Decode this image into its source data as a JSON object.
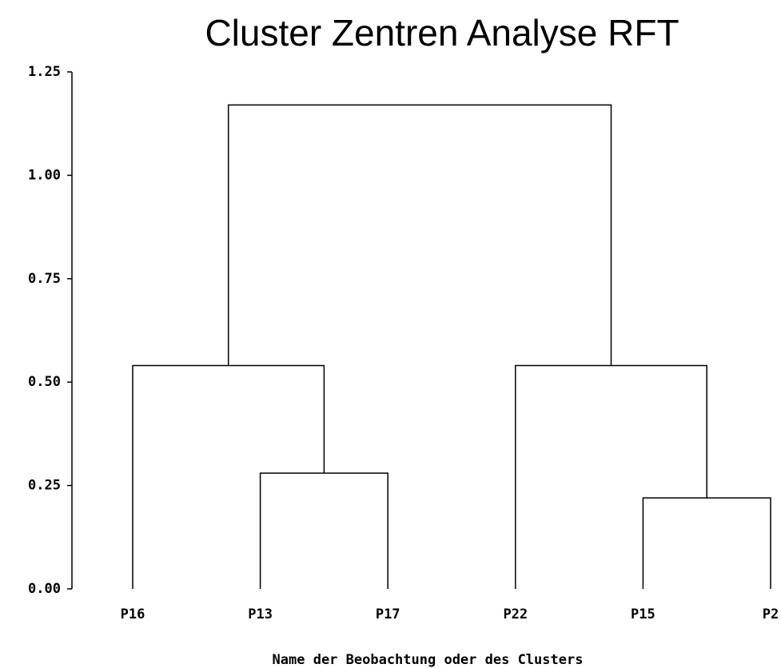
{
  "chart_data": {
    "type": "dendrogram",
    "title": "Cluster Zentren Analyse RFT",
    "x_label": "Name der Beobachtung oder des Clusters",
    "categories": [
      "P16",
      "P13",
      "P17",
      "P22",
      "P15",
      "P2"
    ],
    "merges": [
      {
        "children": [
          1,
          2
        ],
        "height": 0.28
      },
      {
        "children": [
          4,
          5
        ],
        "height": 0.22
      },
      {
        "children": [
          0,
          6
        ],
        "height": 0.54
      },
      {
        "children": [
          3,
          7
        ],
        "height": 0.54
      },
      {
        "children": [
          8,
          9
        ],
        "height": 1.17
      }
    ],
    "color": "#000000",
    "ylim": [
      0,
      1.25
    ],
    "yticks": [
      {
        "value": 0,
        "label": "0.00"
      },
      {
        "value": 0.25,
        "label": "0.25"
      },
      {
        "value": 0.5,
        "label": "0.50"
      },
      {
        "value": 0.75,
        "label": "0.75"
      },
      {
        "value": 1,
        "label": "1.00"
      },
      {
        "value": 1.25,
        "label": "1.25"
      }
    ]
  }
}
